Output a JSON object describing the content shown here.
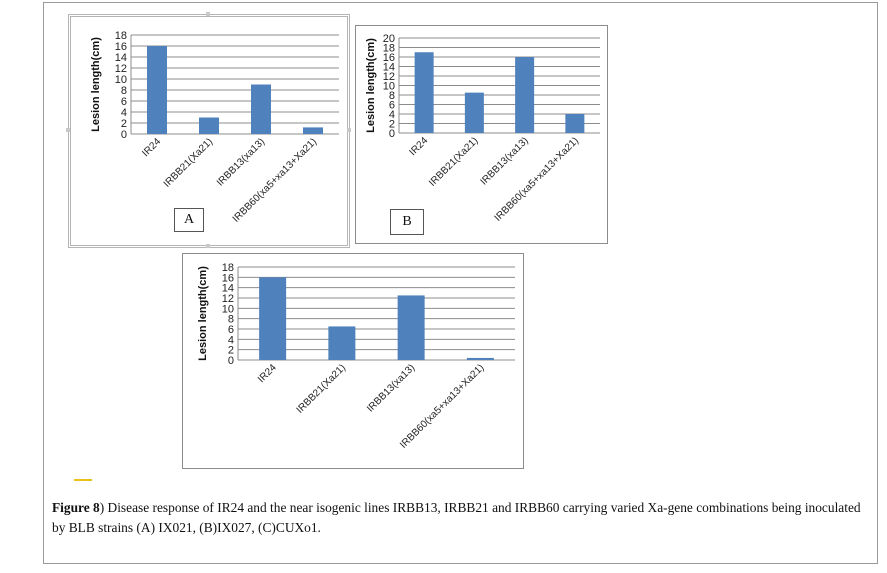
{
  "colors": {
    "bar": "#4f81bd",
    "grid": "#8c8c8c",
    "accent": "#e8c21a"
  },
  "caption": {
    "label": "Figure 8",
    "text": ") Disease response of IR24 and the near isogenic lines IRBB13, IRBB21 and IRBB60 carrying varied Xa-gene combinations being inoculated by BLB strains (A) IX021, (B)IX027, (C)CUXo1."
  },
  "chart_data": [
    {
      "id": "A",
      "type": "bar",
      "panel_label": "A",
      "categories": [
        "IR24",
        "IRBB21(Xa21)",
        "IRBB13(xa13)",
        "IRBB60(xa5+xa13+Xa21)"
      ],
      "values": [
        16,
        3,
        9,
        1.2
      ],
      "ylabel": "Lesion length(cm)",
      "ylim": [
        0,
        18
      ],
      "yticks": [
        0,
        2,
        4,
        6,
        8,
        10,
        12,
        14,
        16,
        18
      ],
      "grid": true
    },
    {
      "id": "B",
      "type": "bar",
      "panel_label": "B",
      "categories": [
        "IR24",
        "IRBB21(Xa21)",
        "IRBB13(xa13)",
        "IRBB60(xa5+xa13+Xa21)"
      ],
      "values": [
        17,
        8.5,
        16,
        4
      ],
      "ylabel": "Lesion length(cm)",
      "ylim": [
        0,
        20
      ],
      "yticks": [
        0,
        2,
        4,
        6,
        8,
        10,
        12,
        14,
        16,
        18,
        20
      ],
      "grid": true
    },
    {
      "id": "C",
      "type": "bar",
      "categories": [
        "IR24",
        "IRBB21(Xa21)",
        "IRBB13(xa13)",
        "IRBB60(xa5+xa13+Xa21)"
      ],
      "values": [
        16,
        6.5,
        12.5,
        0.4
      ],
      "ylabel": "Lesion length(cm)",
      "ylim": [
        0,
        18
      ],
      "yticks": [
        0,
        2,
        4,
        6,
        8,
        10,
        12,
        14,
        16,
        18
      ],
      "grid": true
    }
  ]
}
